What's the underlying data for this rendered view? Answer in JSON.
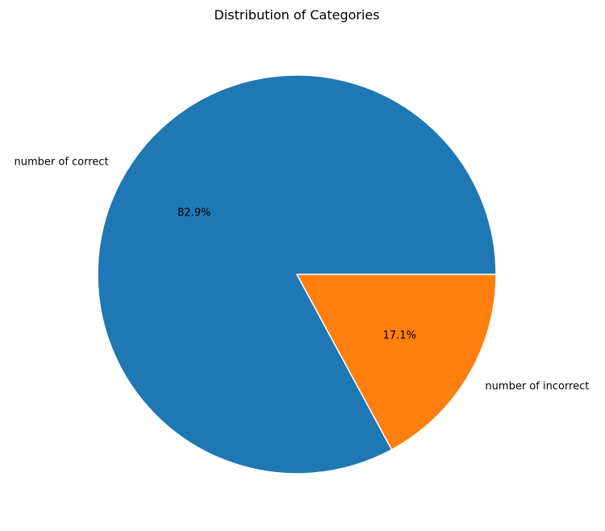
{
  "chart_data": {
    "type": "pie",
    "title": "Distribution of Categories",
    "categories": [
      "number of correct",
      "number of incorrect"
    ],
    "values": [
      82.9,
      17.1
    ],
    "percent_labels": [
      "82.9%",
      "17.1%"
    ],
    "colors": [
      "#1f77b4",
      "#ff7f0e"
    ],
    "edge_color": "#ffffff",
    "start_angle_deg": 0,
    "direction": "counterclockwise"
  }
}
